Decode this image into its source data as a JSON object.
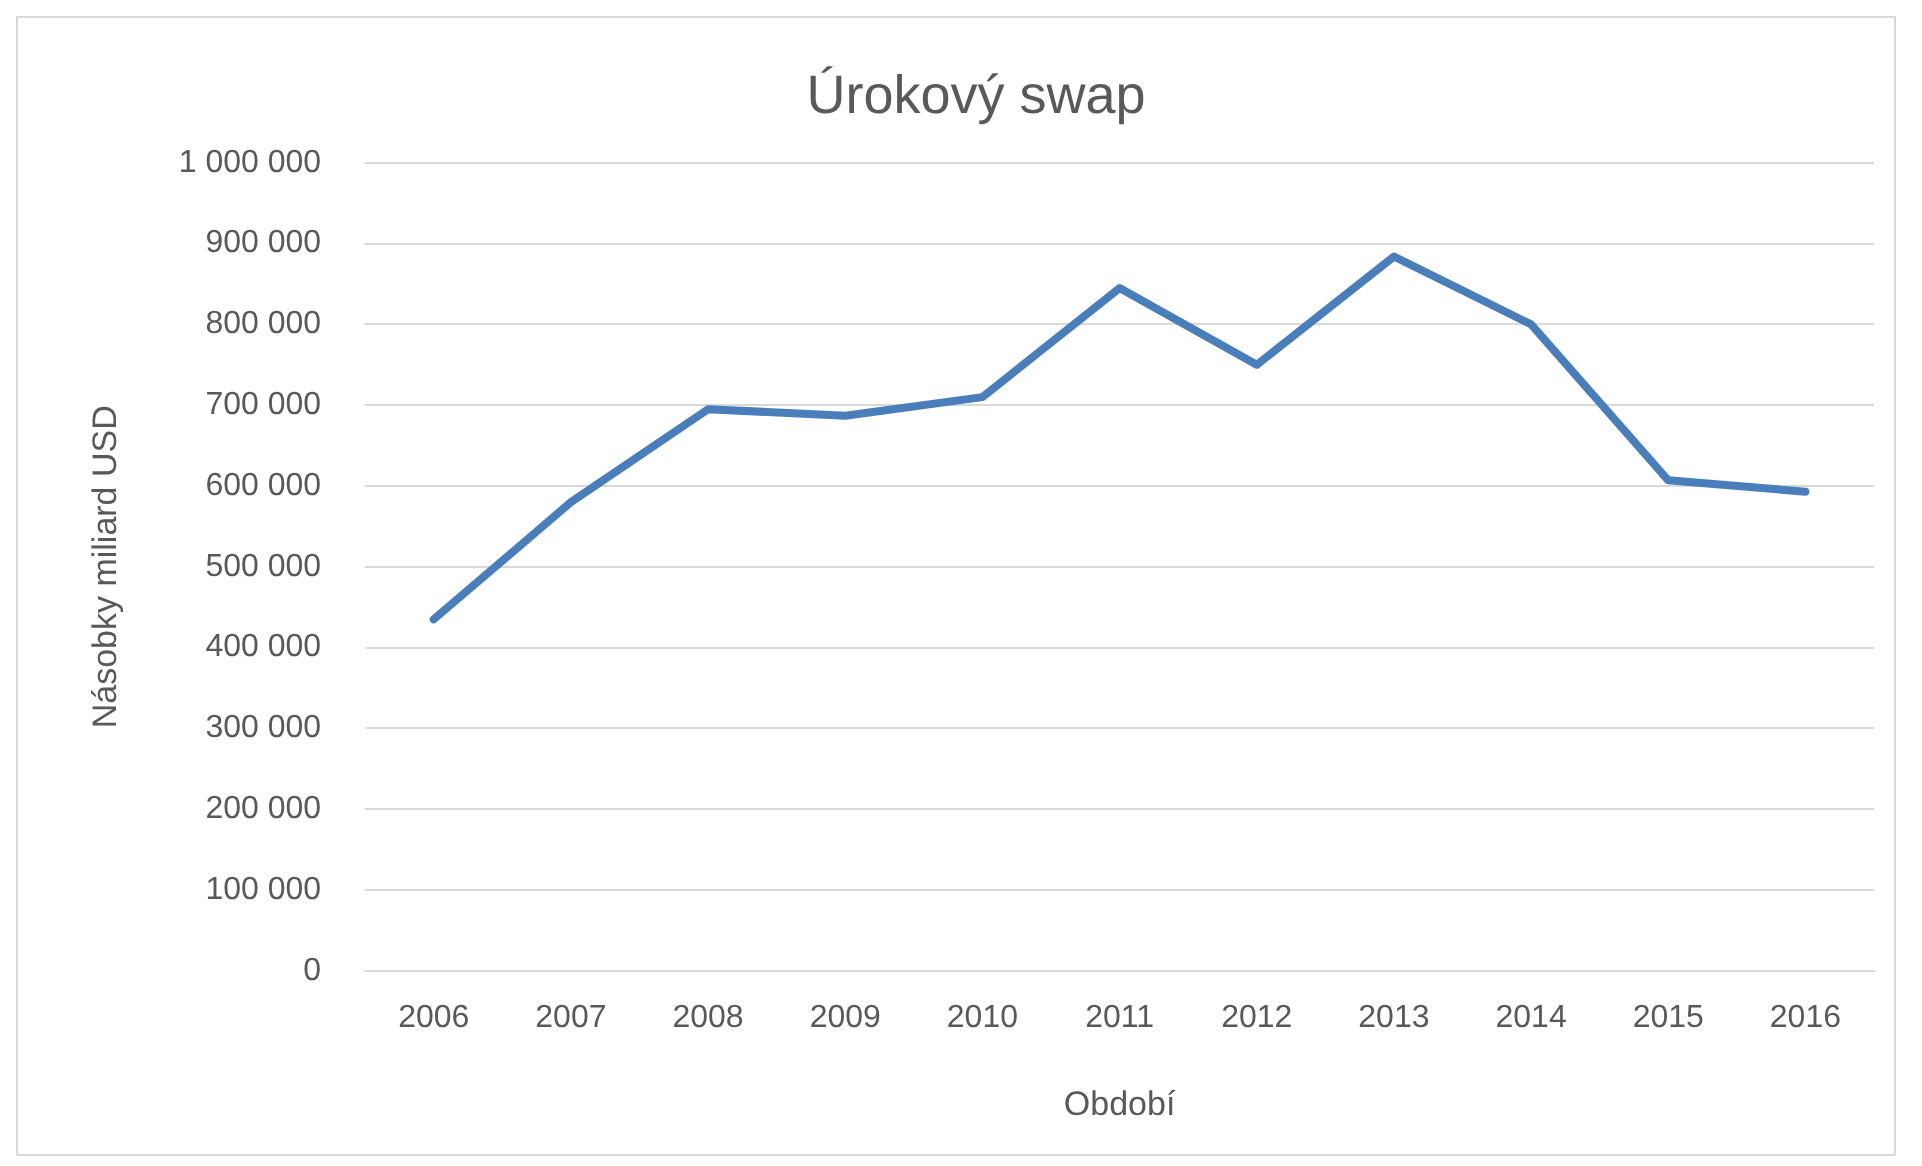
{
  "chart_data": {
    "type": "line",
    "title": "Úrokový swap",
    "xlabel": "Období",
    "ylabel": "Násobky miliard USD",
    "categories": [
      "2006",
      "2007",
      "2008",
      "2009",
      "2010",
      "2011",
      "2012",
      "2013",
      "2014",
      "2015",
      "2016"
    ],
    "series": [
      {
        "color": "#4a7ebb",
        "values": [
          435000,
          580000,
          695000,
          687000,
          710000,
          845000,
          750000,
          884000,
          800000,
          607000,
          593000
        ]
      }
    ],
    "ylim": [
      0,
      1000000
    ],
    "yticks": [
      {
        "value": 0,
        "label": "0"
      },
      {
        "value": 100000,
        "label": "100 000"
      },
      {
        "value": 200000,
        "label": "200 000"
      },
      {
        "value": 300000,
        "label": "300 000"
      },
      {
        "value": 400000,
        "label": "400 000"
      },
      {
        "value": 500000,
        "label": "500 000"
      },
      {
        "value": 600000,
        "label": "600 000"
      },
      {
        "value": 700000,
        "label": "700 000"
      },
      {
        "value": 800000,
        "label": "800 000"
      },
      {
        "value": 900000,
        "label": "900 000"
      },
      {
        "value": 1000000,
        "label": "1 000 000"
      }
    ],
    "grid": "y",
    "legend": false,
    "marker": "none",
    "line_style": "solid"
  }
}
